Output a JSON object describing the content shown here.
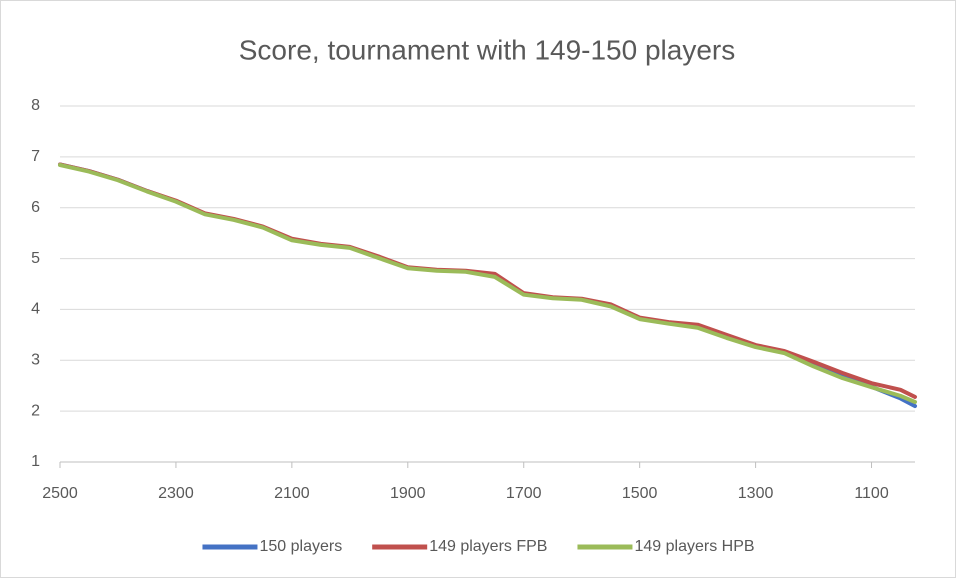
{
  "chart_data": {
    "type": "line",
    "title": "Score, tournament with 149-150 players",
    "x": [
      2500,
      2450,
      2400,
      2350,
      2300,
      2250,
      2200,
      2150,
      2100,
      2050,
      2000,
      1950,
      1900,
      1850,
      1800,
      1750,
      1700,
      1650,
      1600,
      1550,
      1500,
      1450,
      1400,
      1350,
      1300,
      1250,
      1200,
      1150,
      1100,
      1050,
      1025
    ],
    "series": [
      {
        "name": "150 players",
        "color": "#4472c4",
        "values": [
          6.85,
          6.72,
          6.55,
          6.33,
          6.13,
          5.88,
          5.77,
          5.62,
          5.37,
          5.28,
          5.22,
          5.02,
          4.82,
          4.77,
          4.75,
          4.65,
          4.3,
          4.23,
          4.2,
          4.07,
          3.82,
          3.73,
          3.65,
          3.45,
          3.27,
          3.15,
          2.9,
          2.68,
          2.48,
          2.25,
          2.1
        ]
      },
      {
        "name": "149 players FPB",
        "color": "#c0504d",
        "values": [
          6.85,
          6.72,
          6.55,
          6.33,
          6.14,
          5.89,
          5.78,
          5.63,
          5.39,
          5.29,
          5.23,
          5.04,
          4.83,
          4.78,
          4.76,
          4.7,
          4.32,
          4.24,
          4.21,
          4.1,
          3.84,
          3.75,
          3.7,
          3.5,
          3.3,
          3.18,
          2.97,
          2.75,
          2.55,
          2.42,
          2.28
        ]
      },
      {
        "name": "149 players HPB",
        "color": "#9bbb59",
        "values": [
          6.84,
          6.71,
          6.54,
          6.32,
          6.12,
          5.87,
          5.76,
          5.61,
          5.36,
          5.27,
          5.21,
          5.01,
          4.81,
          4.76,
          4.74,
          4.64,
          4.29,
          4.22,
          4.19,
          4.06,
          3.81,
          3.72,
          3.64,
          3.44,
          3.26,
          3.14,
          2.88,
          2.65,
          2.47,
          2.3,
          2.18
        ]
      }
    ],
    "xlim": [
      2500,
      1025
    ],
    "xticks": [
      2500,
      2300,
      2100,
      1900,
      1700,
      1500,
      1300,
      1100
    ],
    "ylim": [
      1,
      8
    ],
    "yticks": [
      1,
      2,
      3,
      4,
      5,
      6,
      7,
      8
    ],
    "grid": true,
    "legend": "bottom"
  }
}
